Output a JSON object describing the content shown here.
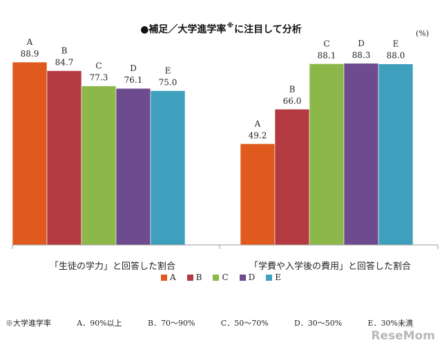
{
  "title_before": "●補足／大学進学率",
  "title_mark": "※",
  "title_after": "に注目して分析",
  "unit": "(%)",
  "footnote": {
    "prefix": "※大学進学率",
    "items": [
      "A．90%以上",
      "B．70～90%",
      "C．50～70%",
      "D．30～50%",
      "E．30%未満"
    ]
  },
  "watermark": "ReseMom",
  "watermark_sub": "リセマム",
  "colors": {
    "A": "#E05A1E",
    "B": "#B23A40",
    "C": "#8CB84A",
    "D": "#6E4A8E",
    "E": "#3FA0BE"
  },
  "chart_data": {
    "type": "bar",
    "categories": [
      "「生徒の学力」と回答した割合",
      "「学費や入学後の費用」と回答した割合"
    ],
    "series": [
      {
        "name": "A",
        "values": [
          88.9,
          49.2
        ]
      },
      {
        "name": "B",
        "values": [
          84.7,
          66.0
        ]
      },
      {
        "name": "C",
        "values": [
          77.3,
          88.1
        ]
      },
      {
        "name": "D",
        "values": [
          76.1,
          88.3
        ]
      },
      {
        "name": "E",
        "values": [
          75.0,
          88.0
        ]
      }
    ],
    "legend": "bottom-center",
    "grid": false
  }
}
